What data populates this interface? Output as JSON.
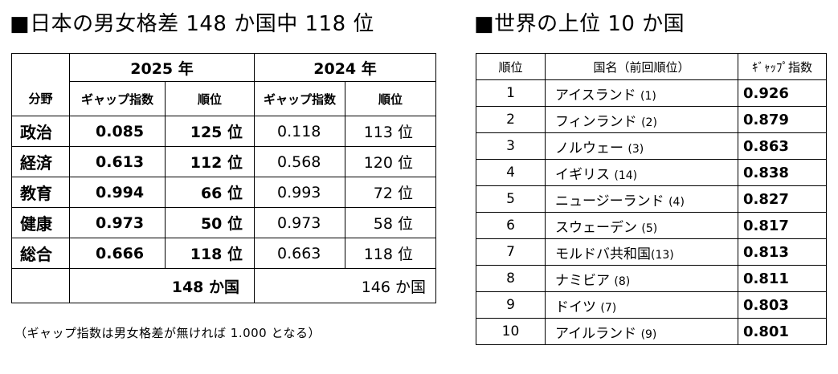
{
  "left_heading": "■日本の男女格差 148 か国中 118 位",
  "right_heading": "■世界の上位 10 か国",
  "japan": {
    "year_2025": "2025 年",
    "year_2024": "2024 年",
    "col_field": "分野",
    "col_index": "ギャップ指数",
    "col_rank": "順位",
    "rows": [
      {
        "field": "政治",
        "index_2025": "0.085",
        "rank_2025": "125 位",
        "index_2024": "0.118",
        "rank_2024": "113 位"
      },
      {
        "field": "経済",
        "index_2025": "0.613",
        "rank_2025": "112 位",
        "index_2024": "0.568",
        "rank_2024": "120 位"
      },
      {
        "field": "教育",
        "index_2025": "0.994",
        "rank_2025": "66 位",
        "index_2024": "0.993",
        "rank_2024": "72 位"
      },
      {
        "field": "健康",
        "index_2025": "0.973",
        "rank_2025": "50 位",
        "index_2024": "0.973",
        "rank_2024": "58 位"
      },
      {
        "field": "総合",
        "index_2025": "0.666",
        "rank_2025": "118 位",
        "index_2024": "0.663",
        "rank_2024": "118 位"
      }
    ],
    "total_2025": "148 か国",
    "total_2024": "146 か国"
  },
  "note": "（ギャップ指数は男女格差が無ければ 1.000 となる）",
  "world": {
    "col_rank": "順位",
    "col_country": "国名（前回順位）",
    "col_index": "ｷﾞｬｯﾌﾟ指数",
    "rows": [
      {
        "rank": "1",
        "country": "アイスランド",
        "prev": "(1)",
        "score": "0.926"
      },
      {
        "rank": "2",
        "country": "フィンランド",
        "prev": "(2)",
        "score": "0.879"
      },
      {
        "rank": "3",
        "country": "ノルウェー",
        "prev": "(3)",
        "score": "0.863"
      },
      {
        "rank": "4",
        "country": "イギリス",
        "prev": "(14)",
        "score": "0.838"
      },
      {
        "rank": "5",
        "country": "ニュージーランド",
        "prev": "(4)",
        "score": "0.827"
      },
      {
        "rank": "6",
        "country": "スウェーデン",
        "prev": "(5)",
        "score": "0.817"
      },
      {
        "rank": "7",
        "country": "モルドバ共和国",
        "prev": "(13)",
        "score": "0.813"
      },
      {
        "rank": "8",
        "country": "ナミビア",
        "prev": "(8)",
        "score": "0.811"
      },
      {
        "rank": "9",
        "country": "ドイツ",
        "prev": "(7)",
        "score": "0.803"
      },
      {
        "rank": "10",
        "country": "アイルランド",
        "prev": "(9)",
        "score": "0.801"
      }
    ]
  }
}
